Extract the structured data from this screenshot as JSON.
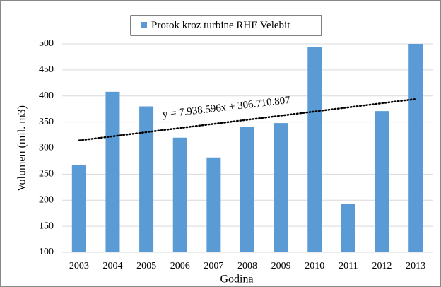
{
  "chart_data": {
    "type": "bar",
    "legend": "Protok kroz turbine RHE Velebit",
    "x_label": "Godina",
    "y_label": "Volumen (mil. m3)",
    "categories": [
      "2003",
      "2004",
      "2005",
      "2006",
      "2007",
      "2008",
      "2009",
      "2010",
      "2011",
      "2012",
      "2013"
    ],
    "values": [
      267,
      408,
      380,
      320,
      282,
      341,
      348,
      494,
      193,
      371,
      500
    ],
    "color": "#5b9bd5",
    "ylim": [
      100,
      500
    ],
    "yticks": [
      100,
      150,
      200,
      250,
      300,
      350,
      400,
      450,
      500
    ],
    "grid": true,
    "trendline": {
      "label": "y = 7.938.596x + 306.710.807",
      "slope": 7.938596,
      "intercept": 306.710807
    }
  }
}
